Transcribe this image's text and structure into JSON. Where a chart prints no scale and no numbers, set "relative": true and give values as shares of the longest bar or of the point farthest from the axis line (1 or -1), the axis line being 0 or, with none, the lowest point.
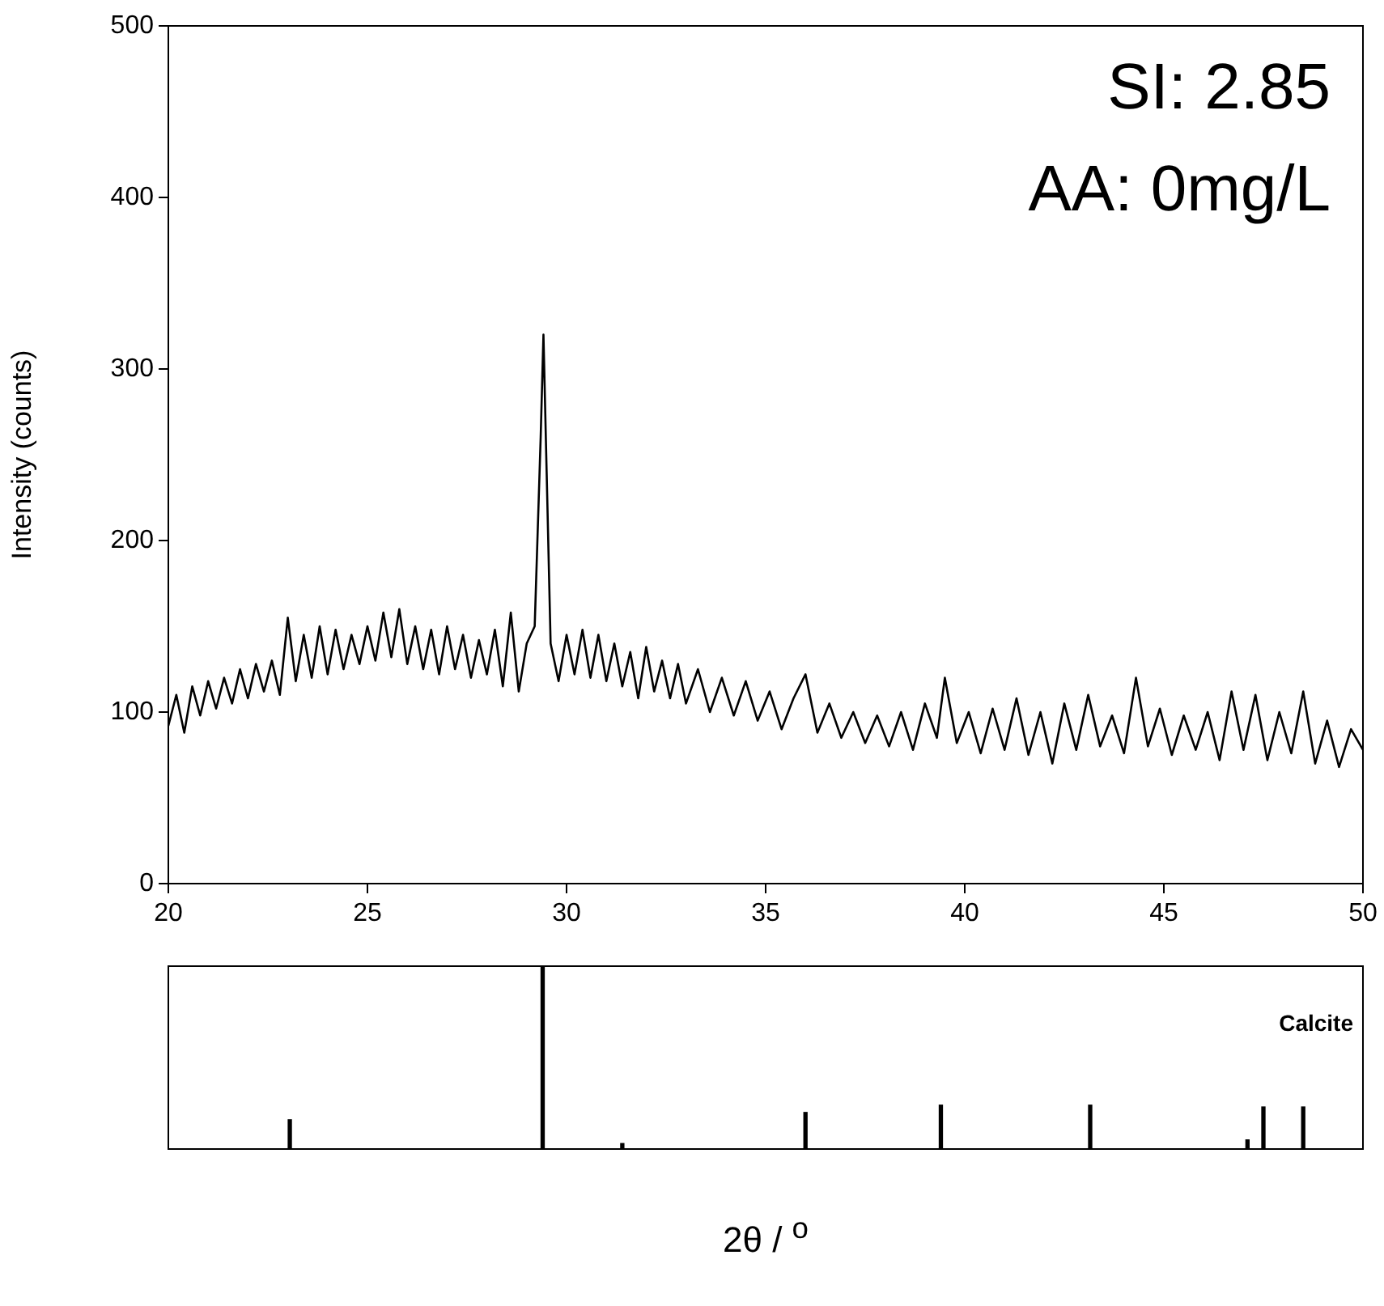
{
  "chart_data": [
    {
      "type": "line",
      "ylabel": "Intensity (counts)",
      "annotations": [
        "SI: 2.85",
        "AA: 0mg/L"
      ],
      "xlim": [
        20,
        50
      ],
      "xticks": [
        20,
        25,
        30,
        35,
        40,
        45,
        50
      ],
      "ylim": [
        0,
        500
      ],
      "yticks": [
        0,
        100,
        200,
        300,
        400,
        500
      ],
      "marker": "none",
      "series": [
        {
          "color": "#000000",
          "x": [
            20.0,
            20.2,
            20.4,
            20.6,
            20.8,
            21.0,
            21.2,
            21.4,
            21.6,
            21.8,
            22.0,
            22.2,
            22.4,
            22.6,
            22.8,
            23.0,
            23.2,
            23.4,
            23.6,
            23.8,
            24.0,
            24.2,
            24.4,
            24.6,
            24.8,
            25.0,
            25.2,
            25.4,
            25.6,
            25.8,
            26.0,
            26.2,
            26.4,
            26.6,
            26.8,
            27.0,
            27.2,
            27.4,
            27.6,
            27.8,
            28.0,
            28.2,
            28.4,
            28.6,
            28.8,
            29.0,
            29.2,
            29.35,
            29.42,
            29.5,
            29.6,
            29.8,
            30.0,
            30.2,
            30.4,
            30.6,
            30.8,
            31.0,
            31.2,
            31.4,
            31.6,
            31.8,
            32.0,
            32.2,
            32.4,
            32.6,
            32.8,
            33.0,
            33.3,
            33.6,
            33.9,
            34.2,
            34.5,
            34.8,
            35.1,
            35.4,
            35.7,
            36.0,
            36.3,
            36.6,
            36.9,
            37.2,
            37.5,
            37.8,
            38.1,
            38.4,
            38.7,
            39.0,
            39.3,
            39.5,
            39.8,
            40.1,
            40.4,
            40.7,
            41.0,
            41.3,
            41.6,
            41.9,
            42.2,
            42.5,
            42.8,
            43.1,
            43.4,
            43.7,
            44.0,
            44.3,
            44.6,
            44.9,
            45.2,
            45.5,
            45.8,
            46.1,
            46.4,
            46.7,
            47.0,
            47.3,
            47.6,
            47.9,
            48.2,
            48.5,
            48.8,
            49.1,
            49.4,
            49.7,
            50.0
          ],
          "values": [
            92,
            110,
            88,
            115,
            98,
            118,
            102,
            120,
            105,
            125,
            108,
            128,
            112,
            130,
            110,
            155,
            118,
            145,
            120,
            150,
            122,
            148,
            125,
            145,
            128,
            150,
            130,
            158,
            132,
            160,
            128,
            150,
            125,
            148,
            122,
            150,
            125,
            145,
            120,
            142,
            122,
            148,
            115,
            158,
            112,
            140,
            150,
            260,
            320,
            240,
            140,
            118,
            145,
            122,
            148,
            120,
            145,
            118,
            140,
            115,
            135,
            108,
            138,
            112,
            130,
            108,
            128,
            105,
            125,
            100,
            120,
            98,
            118,
            95,
            112,
            90,
            108,
            122,
            88,
            105,
            85,
            100,
            82,
            98,
            80,
            100,
            78,
            105,
            85,
            120,
            82,
            100,
            76,
            102,
            78,
            108,
            75,
            100,
            70,
            105,
            78,
            110,
            80,
            98,
            76,
            120,
            80,
            102,
            75,
            98,
            78,
            100,
            72,
            112,
            78,
            110,
            72,
            100,
            76,
            112,
            70,
            95,
            68,
            90,
            78
          ]
        }
      ]
    },
    {
      "type": "bar",
      "relative": true,
      "xlabel": "2θ / $^{o}$",
      "annotations": [
        "Calcite"
      ],
      "xlim": [
        20,
        50
      ],
      "xticks": [
        20,
        25,
        30,
        35,
        40,
        45,
        50
      ],
      "tick_labels": false,
      "x": [
        23.05,
        29.4,
        31.4,
        36.0,
        39.4,
        43.15,
        47.1,
        47.5,
        48.5
      ],
      "values": [
        0.16,
        1,
        0.03,
        0.2,
        0.24,
        0.24,
        0.05,
        0.23,
        0.23
      ],
      "color": "#000000"
    }
  ]
}
